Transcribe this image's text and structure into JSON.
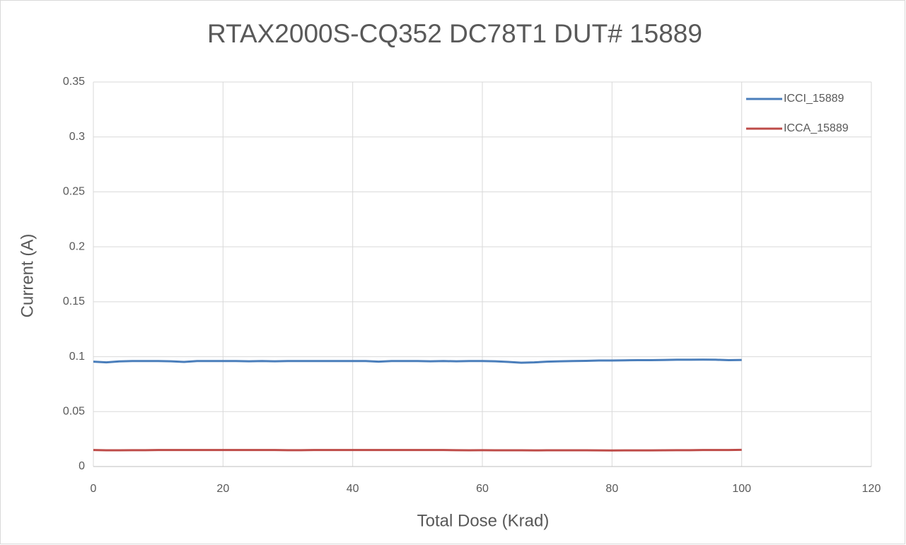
{
  "chart_data": {
    "type": "line",
    "title": "RTAX2000S-CQ352 DC78T1 DUT# 15889",
    "x_label": "Total Dose (Krad)",
    "y_label": "Current (A)",
    "x": [
      0,
      2,
      4,
      6,
      8,
      10,
      12,
      14,
      16,
      18,
      20,
      22,
      24,
      26,
      28,
      30,
      32,
      34,
      36,
      38,
      40,
      42,
      44,
      46,
      48,
      50,
      52,
      54,
      56,
      58,
      60,
      62,
      64,
      66,
      68,
      70,
      72,
      74,
      76,
      78,
      80,
      82,
      84,
      86,
      88,
      90,
      92,
      94,
      96,
      98,
      100
    ],
    "series": [
      {
        "name": "ICCI_15889",
        "color": "#4a7ebb",
        "values": [
          0.0955,
          0.0948,
          0.0957,
          0.096,
          0.096,
          0.096,
          0.0958,
          0.0952,
          0.096,
          0.096,
          0.096,
          0.096,
          0.0958,
          0.096,
          0.0958,
          0.096,
          0.096,
          0.096,
          0.096,
          0.096,
          0.096,
          0.096,
          0.0955,
          0.096,
          0.096,
          0.096,
          0.0958,
          0.096,
          0.0958,
          0.096,
          0.096,
          0.0958,
          0.0952,
          0.0945,
          0.0948,
          0.0955,
          0.0958,
          0.096,
          0.0962,
          0.0965,
          0.0965,
          0.0967,
          0.0968,
          0.0968,
          0.097,
          0.0972,
          0.0972,
          0.0973,
          0.0972,
          0.0968,
          0.097
        ]
      },
      {
        "name": "ICCA_15889",
        "color": "#be4b48",
        "values": [
          0.015,
          0.0148,
          0.0148,
          0.0149,
          0.0149,
          0.015,
          0.015,
          0.015,
          0.015,
          0.015,
          0.015,
          0.015,
          0.015,
          0.015,
          0.015,
          0.0149,
          0.0149,
          0.015,
          0.015,
          0.015,
          0.015,
          0.015,
          0.015,
          0.015,
          0.015,
          0.015,
          0.015,
          0.015,
          0.0149,
          0.0148,
          0.0149,
          0.0148,
          0.0148,
          0.0148,
          0.0147,
          0.0148,
          0.0148,
          0.0148,
          0.0148,
          0.0147,
          0.0146,
          0.0147,
          0.0147,
          0.0147,
          0.0148,
          0.0149,
          0.0149,
          0.015,
          0.015,
          0.015,
          0.0152
        ]
      }
    ],
    "xlim": [
      0,
      120
    ],
    "xticks": [
      0,
      20,
      40,
      60,
      80,
      100,
      120
    ],
    "ylim": [
      0,
      0.35
    ],
    "yticks": [
      0,
      0.05,
      0.1,
      0.15,
      0.2,
      0.25,
      0.3,
      0.35
    ],
    "grid": true,
    "legend": "top-right"
  }
}
